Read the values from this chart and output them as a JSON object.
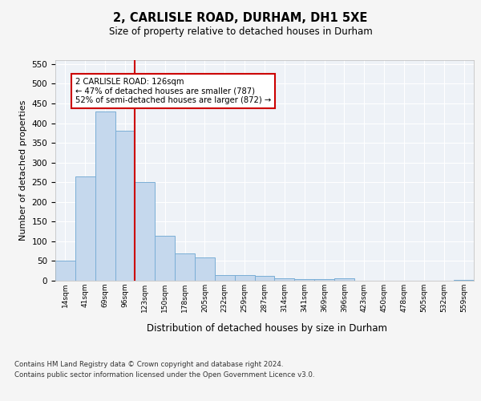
{
  "title_line1": "2, CARLISLE ROAD, DURHAM, DH1 5XE",
  "title_line2": "Size of property relative to detached houses in Durham",
  "xlabel": "Distribution of detached houses by size in Durham",
  "ylabel": "Number of detached properties",
  "categories": [
    "14sqm",
    "41sqm",
    "69sqm",
    "96sqm",
    "123sqm",
    "150sqm",
    "178sqm",
    "205sqm",
    "232sqm",
    "259sqm",
    "287sqm",
    "314sqm",
    "341sqm",
    "369sqm",
    "396sqm",
    "423sqm",
    "450sqm",
    "478sqm",
    "505sqm",
    "532sqm",
    "559sqm"
  ],
  "values": [
    50,
    265,
    430,
    380,
    250,
    115,
    70,
    60,
    15,
    15,
    13,
    7,
    5,
    5,
    6,
    0,
    0,
    0,
    0,
    0,
    2
  ],
  "bar_color": "#c5d8ed",
  "bar_edge_color": "#7aaed6",
  "vline_x_index": 4,
  "vline_color": "#cc0000",
  "annotation_text": "2 CARLISLE ROAD: 126sqm\n← 47% of detached houses are smaller (787)\n52% of semi-detached houses are larger (872) →",
  "annotation_box_color": "#ffffff",
  "annotation_box_edge_color": "#cc0000",
  "ylim": [
    0,
    560
  ],
  "yticks": [
    0,
    50,
    100,
    150,
    200,
    250,
    300,
    350,
    400,
    450,
    500,
    550
  ],
  "background_color": "#eef2f7",
  "grid_color": "#ffffff",
  "fig_background": "#f5f5f5",
  "footer_line1": "Contains HM Land Registry data © Crown copyright and database right 2024.",
  "footer_line2": "Contains public sector information licensed under the Open Government Licence v3.0."
}
